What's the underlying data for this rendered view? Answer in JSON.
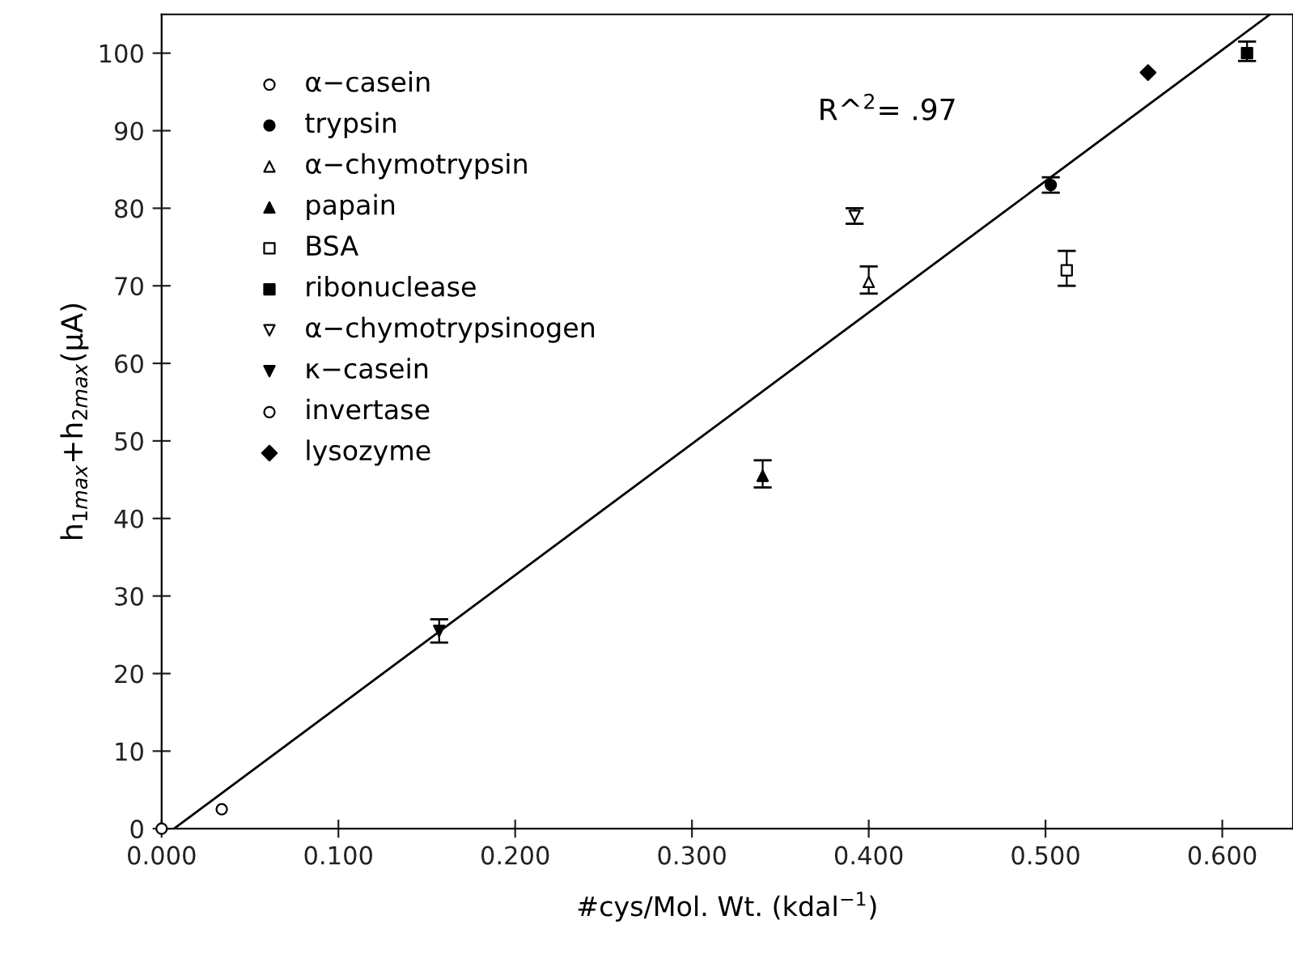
{
  "chart_data": {
    "type": "scatter",
    "xlabel": "#cys/Mol. Wt. (kdal$^{−1}$)",
    "ylabel": "h$_{1max}$+h$_{2max}$(μA)",
    "annotations": [
      "R^$^{2}$= .97"
    ],
    "xlim": [
      0,
      0.64
    ],
    "ylim": [
      0,
      105
    ],
    "xticks": [
      {
        "value": 0,
        "label": "0.000"
      },
      {
        "value": 0.1,
        "label": "0.100"
      },
      {
        "value": 0.2,
        "label": "0.200"
      },
      {
        "value": 0.3,
        "label": "0.300"
      },
      {
        "value": 0.4,
        "label": "0.400"
      },
      {
        "value": 0.5,
        "label": "0.500"
      },
      {
        "value": 0.6,
        "label": "0.600"
      }
    ],
    "yticks": [
      0,
      10,
      20,
      30,
      40,
      50,
      60,
      70,
      80,
      90,
      100
    ],
    "grid": false,
    "legend": "top left",
    "series": [
      {
        "name": "α−casein",
        "color": "#000000",
        "marker": "circle-open",
        "x": [
          0.0
        ],
        "values": [
          0
        ]
      },
      {
        "name": "trypsin",
        "color": "#000000",
        "marker": "circle",
        "x": [
          0.503
        ],
        "values": [
          83
        ],
        "errors": [
          1
        ]
      },
      {
        "name": "α−chymotrypsin",
        "color": "#000000",
        "marker": "triangle-open",
        "x": [
          0.4
        ],
        "values": [
          70.5
        ],
        "errors": [
          [
            69,
            72.5
          ]
        ]
      },
      {
        "name": "papain",
        "color": "#000000",
        "marker": "triangle",
        "x": [
          0.34
        ],
        "values": [
          45.5
        ],
        "errors": [
          [
            44,
            47.5
          ]
        ]
      },
      {
        "name": "BSA",
        "color": "#000000",
        "marker": "square-open",
        "x": [
          0.512
        ],
        "values": [
          72
        ],
        "errors": [
          [
            70,
            74.5
          ]
        ]
      },
      {
        "name": "ribonuclease",
        "color": "#000000",
        "marker": "square",
        "x": [
          0.614
        ],
        "values": [
          100
        ],
        "errors": [
          [
            99,
            101.5
          ]
        ]
      },
      {
        "name": "α−chymotrypsinogen",
        "color": "#000000",
        "marker": "triangle-down-open",
        "x": [
          0.392
        ],
        "values": [
          79
        ],
        "errors": [
          [
            78,
            80
          ]
        ]
      },
      {
        "name": "κ−casein",
        "color": "#000000",
        "marker": "triangle-down",
        "x": [
          0.157
        ],
        "values": [
          25.5
        ],
        "errors": [
          [
            24,
            27
          ]
        ]
      },
      {
        "name": "invertase",
        "color": "#000000",
        "marker": "circle-open",
        "x": [
          0.034
        ],
        "values": [
          2.5
        ]
      },
      {
        "name": "lysozyme",
        "color": "#000000",
        "marker": "diamond",
        "x": [
          0.558
        ],
        "values": [
          97.5
        ]
      },
      {
        "type": "line",
        "color": "#000000",
        "marker": "none",
        "x": [
          0.007,
          0.627
        ],
        "values": [
          0,
          105
        ]
      }
    ]
  }
}
